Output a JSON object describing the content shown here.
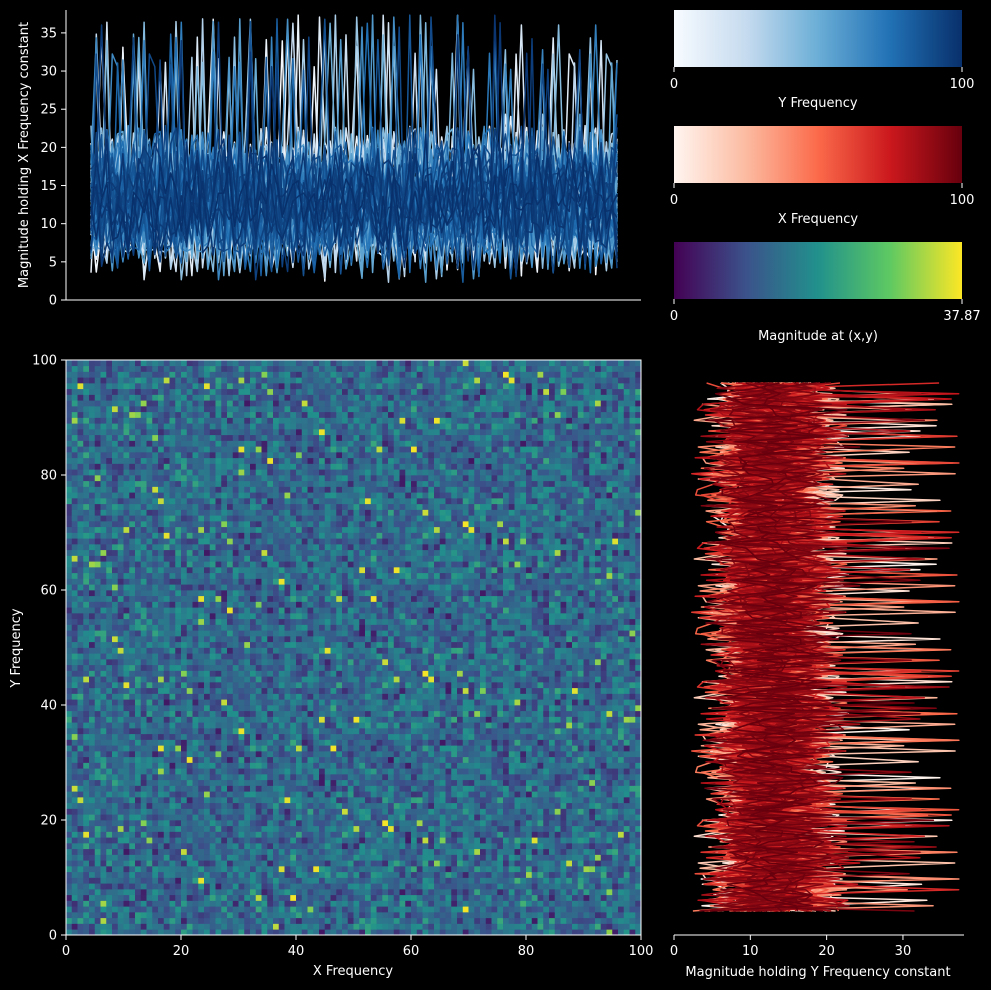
{
  "figure": {
    "background": "#000000",
    "text_color": "#ffffff"
  },
  "chart_data": [
    {
      "type": "heatmap",
      "panel": "main-heatmap",
      "xlabel": "X Frequency",
      "ylabel": "Y Frequency",
      "xlim": [
        0,
        100
      ],
      "ylim": [
        0,
        100
      ],
      "xticks": [
        0,
        20,
        40,
        60,
        80,
        100
      ],
      "yticks": [
        0,
        20,
        40,
        60,
        80,
        100
      ],
      "grid_size": [
        100,
        100
      ],
      "colormap": "viridis",
      "value_range": [
        0,
        37.87
      ],
      "note_values": "random-like magnitudes, mostly 5-25, rare bright cells near max"
    },
    {
      "type": "line",
      "panel": "top-profile",
      "ylabel": "Magnitude holding X Frequency constant",
      "ylim": [
        0,
        38
      ],
      "yticks": [
        0,
        5,
        10,
        15,
        20,
        25,
        30,
        35
      ],
      "x_range": [
        0,
        100
      ],
      "series_count": 100,
      "series_colormap": "Blues",
      "typical_range": [
        0,
        30
      ],
      "peak": 37.87
    },
    {
      "type": "line",
      "panel": "right-profile",
      "xlabel": "Magnitude holding Y Frequency constant",
      "xlim": [
        0,
        38
      ],
      "xticks": [
        0,
        10,
        20,
        30
      ],
      "y_range": [
        0,
        100
      ],
      "series_count": 100,
      "series_colormap": "Reds",
      "typical_range": [
        0,
        30
      ],
      "peak": 37.87
    },
    {
      "type": "colorbar",
      "panel": "cbar-y-frequency",
      "label": "Y Frequency",
      "range": [
        0,
        100
      ],
      "ticks": [
        "0",
        "100"
      ],
      "colormap": "Blues"
    },
    {
      "type": "colorbar",
      "panel": "cbar-x-frequency",
      "label": "X Frequency",
      "range": [
        0,
        100
      ],
      "ticks": [
        "0",
        "100"
      ],
      "colormap": "Reds"
    },
    {
      "type": "colorbar",
      "panel": "cbar-magnitude",
      "label": "Magnitude at (x,y)",
      "range": [
        0,
        37.87
      ],
      "ticks": [
        "0",
        "37.87"
      ],
      "colormap": "viridis"
    }
  ]
}
